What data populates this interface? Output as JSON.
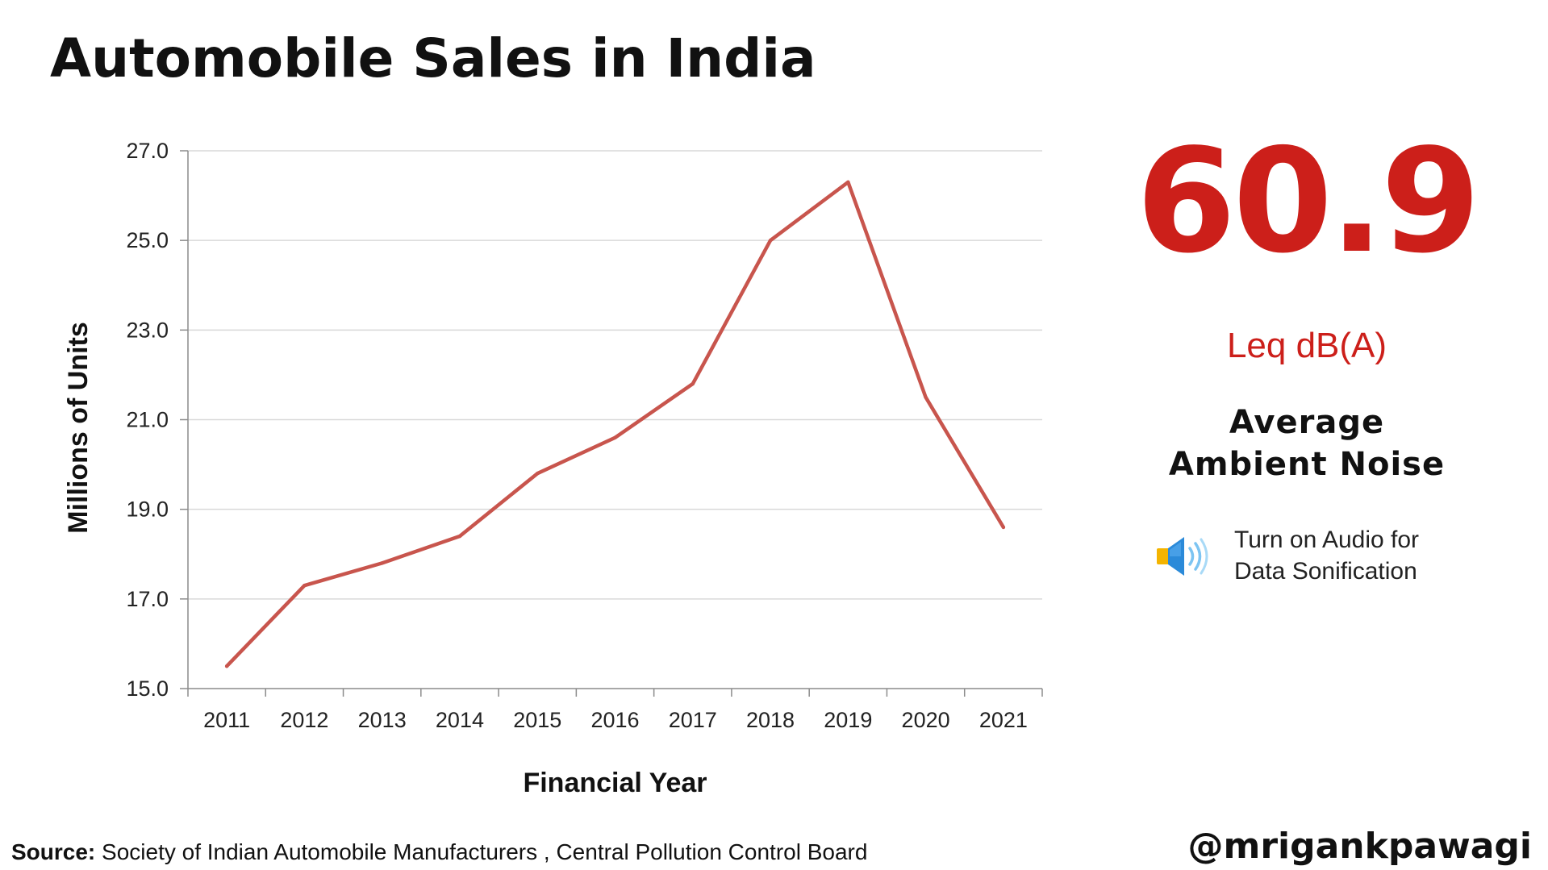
{
  "title": "Automobile Sales in India",
  "chart_data": {
    "type": "line",
    "title": "Automobile Sales in India",
    "xlabel": "Financial Year",
    "ylabel": "Millions of Units",
    "categories": [
      "2011",
      "2012",
      "2013",
      "2014",
      "2015",
      "2016",
      "2017",
      "2018",
      "2019",
      "2020",
      "2021"
    ],
    "series": [
      {
        "values": [
          15.5,
          17.3,
          17.8,
          18.4,
          19.8,
          20.6,
          21.8,
          25.0,
          26.3,
          21.5,
          18.6
        ],
        "color": "#c8554d"
      }
    ],
    "ylim": [
      15.0,
      27.0
    ],
    "yticks": [
      15.0,
      17.0,
      19.0,
      21.0,
      23.0,
      25.0,
      27.0
    ],
    "ytick_labels": [
      "15.0",
      "17.0",
      "19.0",
      "21.0",
      "23.0",
      "25.0",
      "27.0"
    ],
    "grid": true,
    "legend": false
  },
  "metric": {
    "value": "60.9",
    "unit": "Leq dB(A)",
    "label_line1": "Average",
    "label_line2": "Ambient Noise",
    "color": "#cc1f1a"
  },
  "audio_note": {
    "icon": "speaker-icon",
    "line1": "Turn on Audio for",
    "line2": "Data Sonification"
  },
  "source": {
    "label": "Source:",
    "text": " Society of Indian Automobile Manufacturers , Central Pollution Control Board"
  },
  "handle": "@mrigankpawagi",
  "colors": {
    "line": "#c8554d",
    "accent": "#cc1f1a",
    "grid": "#d9d9d9",
    "axis": "#8c8c8c"
  }
}
